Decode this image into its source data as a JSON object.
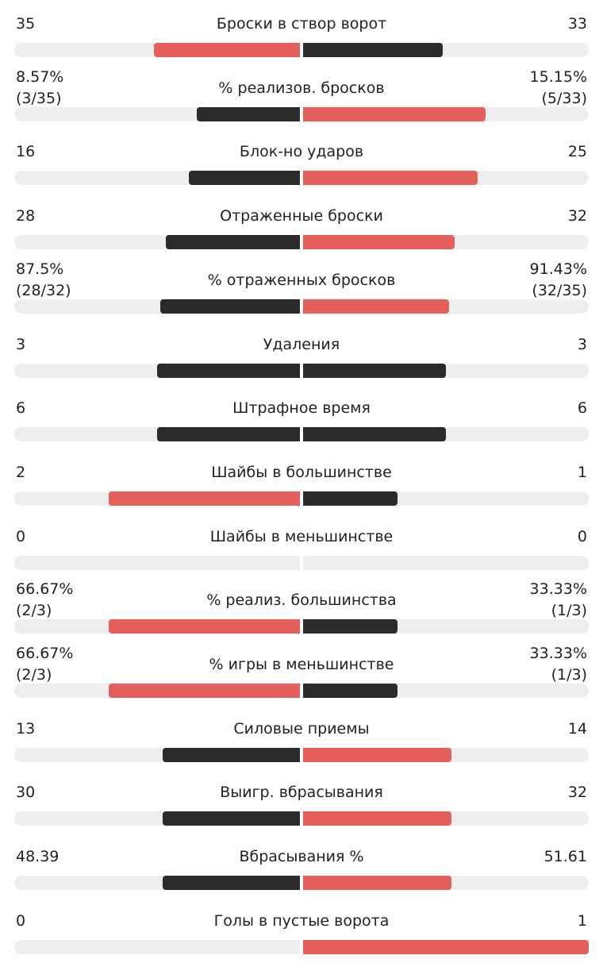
{
  "colors": {
    "leader": "#e5605d",
    "other": "#2b2b2b",
    "track": "#eeeeee",
    "text": "#222222"
  },
  "stats": [
    {
      "label": "Броски в створ ворот",
      "left": "35",
      "right": "33",
      "left_fill": 0.51,
      "right_fill": 0.49,
      "left_leads": true,
      "right_leads": false
    },
    {
      "label": "% реализов. бросков",
      "left": "8.57%\n(3/35)",
      "right": "15.15%\n(5/33)",
      "left_fill": 0.36,
      "right_fill": 0.64,
      "left_leads": false,
      "right_leads": true
    },
    {
      "label": "Блок-но ударов",
      "left": "16",
      "right": "25",
      "left_fill": 0.39,
      "right_fill": 0.61,
      "left_leads": false,
      "right_leads": true
    },
    {
      "label": "Отраженные броски",
      "left": "28",
      "right": "32",
      "left_fill": 0.47,
      "right_fill": 0.53,
      "left_leads": false,
      "right_leads": true
    },
    {
      "label": "% отраженных бросков",
      "left": "87.5%\n(28/32)",
      "right": "91.43%\n(32/35)",
      "left_fill": 0.49,
      "right_fill": 0.51,
      "left_leads": false,
      "right_leads": true
    },
    {
      "label": "Удаления",
      "left": "3",
      "right": "3",
      "left_fill": 0.5,
      "right_fill": 0.5,
      "left_leads": false,
      "right_leads": false
    },
    {
      "label": "Штрафное время",
      "left": "6",
      "right": "6",
      "left_fill": 0.5,
      "right_fill": 0.5,
      "left_leads": false,
      "right_leads": false
    },
    {
      "label": "Шайбы в большинстве",
      "left": "2",
      "right": "1",
      "left_fill": 0.67,
      "right_fill": 0.33,
      "left_leads": true,
      "right_leads": false
    },
    {
      "label": "Шайбы в меньшинстве",
      "left": "0",
      "right": "0",
      "left_fill": 0,
      "right_fill": 0,
      "left_leads": false,
      "right_leads": false
    },
    {
      "label": "% реализ. большинства",
      "left": "66.67%\n(2/3)",
      "right": "33.33%\n(1/3)",
      "left_fill": 0.67,
      "right_fill": 0.33,
      "left_leads": true,
      "right_leads": false
    },
    {
      "label": "% игры в меньшинстве",
      "left": "66.67%\n(2/3)",
      "right": "33.33%\n(1/3)",
      "left_fill": 0.67,
      "right_fill": 0.33,
      "left_leads": true,
      "right_leads": false
    },
    {
      "label": "Силовые приемы",
      "left": "13",
      "right": "14",
      "left_fill": 0.48,
      "right_fill": 0.52,
      "left_leads": false,
      "right_leads": true
    },
    {
      "label": "Выигр. вбрасывания",
      "left": "30",
      "right": "32",
      "left_fill": 0.48,
      "right_fill": 0.52,
      "left_leads": false,
      "right_leads": true
    },
    {
      "label": "Вбрасывания %",
      "left": "48.39",
      "right": "51.61",
      "left_fill": 0.48,
      "right_fill": 0.52,
      "left_leads": false,
      "right_leads": true
    },
    {
      "label": "Голы в пустые ворота",
      "left": "0",
      "right": "1",
      "left_fill": 0,
      "right_fill": 1,
      "left_leads": false,
      "right_leads": true
    }
  ]
}
